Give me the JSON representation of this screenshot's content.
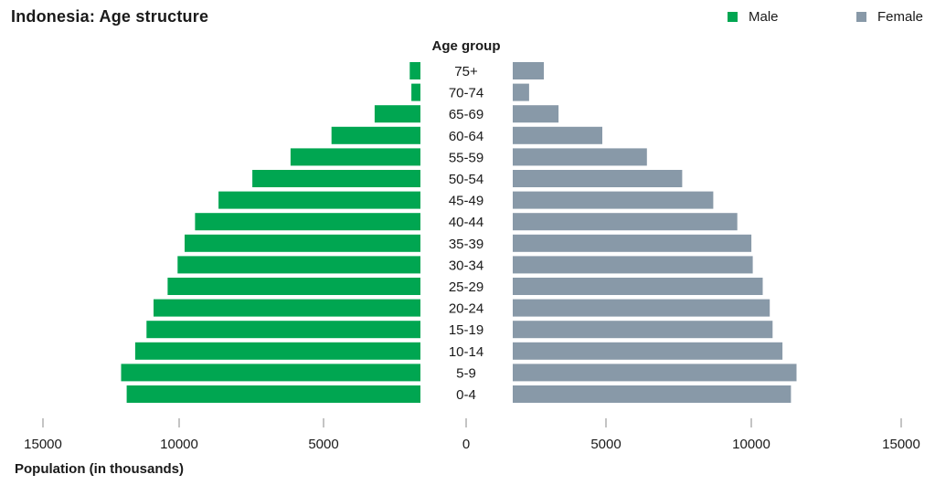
{
  "chart_data": {
    "type": "bar",
    "orientation": "horizontal-population-pyramid",
    "title": "Indonesia: Age structure",
    "category_axis_label": "Age group",
    "xlabel": "Population (in thousands)",
    "xlim": [
      0,
      15000
    ],
    "x_ticks": [
      15000,
      10000,
      5000,
      0,
      5000,
      10000,
      15000
    ],
    "categories": [
      "75+",
      "70-74",
      "65-69",
      "60-64",
      "55-59",
      "50-54",
      "45-49",
      "40-44",
      "35-39",
      "30-34",
      "25-29",
      "20-24",
      "15-19",
      "10-14",
      "5-9",
      "0-4"
    ],
    "series": [
      {
        "name": "Male",
        "color": "#00a651",
        "values": [
          380,
          320,
          1620,
          3150,
          4600,
          5950,
          7150,
          7980,
          8350,
          8600,
          8950,
          9450,
          9700,
          10100,
          10600,
          10400
        ]
      },
      {
        "name": "Female",
        "color": "#8899a8",
        "values": [
          1100,
          580,
          1620,
          3170,
          4750,
          6000,
          7100,
          7950,
          8450,
          8500,
          8850,
          9100,
          9200,
          9550,
          10050,
          9850
        ]
      }
    ],
    "grid": false,
    "legend": "top-right"
  }
}
